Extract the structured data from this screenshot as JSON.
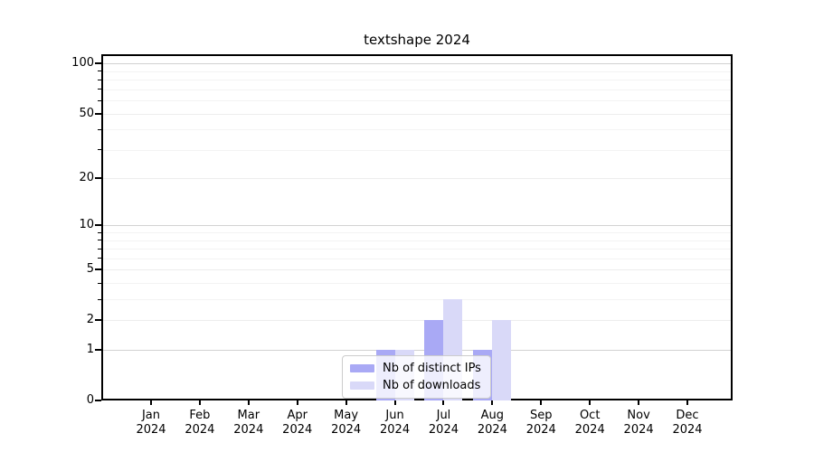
{
  "chart_data": {
    "type": "bar",
    "title": "textshape 2024",
    "x_year": "2024",
    "categories": [
      "Jan",
      "Feb",
      "Mar",
      "Apr",
      "May",
      "Jun",
      "Jul",
      "Aug",
      "Sep",
      "Oct",
      "Nov",
      "Dec"
    ],
    "series": [
      {
        "name": "Nb of distinct IPs",
        "color": "#a9a9f5",
        "values": [
          0,
          0,
          0,
          0,
          0,
          1,
          2,
          1,
          0,
          0,
          0,
          0
        ]
      },
      {
        "name": "Nb of downloads",
        "color": "#d9d9f8",
        "values": [
          0,
          0,
          0,
          0,
          0,
          1,
          3,
          2,
          0,
          0,
          0,
          0
        ]
      }
    ],
    "yscale": "log1p",
    "ylim": [
      0,
      114
    ],
    "yticks": [
      0,
      1,
      2,
      5,
      10,
      20,
      50,
      100
    ],
    "yticks_major_grid": [
      1,
      10,
      100
    ],
    "yticks_minor": [
      3,
      4,
      6,
      7,
      8,
      9,
      30,
      40,
      60,
      70,
      80,
      90
    ],
    "grid": true,
    "legend_position": "lower-center",
    "xlabel": "",
    "ylabel": ""
  },
  "colors": {
    "spine": "#000000",
    "grid_major": "#d2d2d2",
    "grid_minor": "#f3f3f3",
    "legend_border": "#cccccc"
  }
}
